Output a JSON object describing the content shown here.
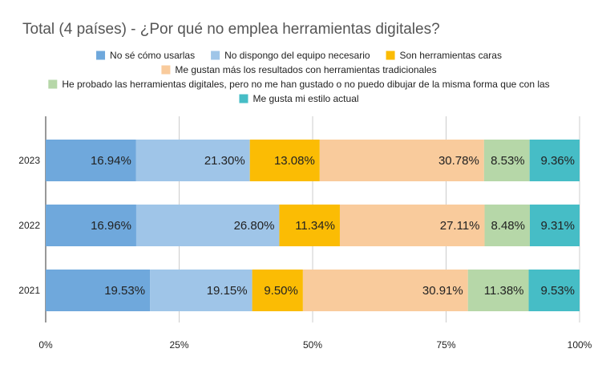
{
  "chart_data": {
    "type": "bar",
    "orientation": "horizontal",
    "stacked": "percent",
    "title": "Total (4 países) - ¿Por qué no emplea herramientas digitales?",
    "categories": [
      "2023",
      "2022",
      "2021"
    ],
    "series": [
      {
        "name": "No sé cómo usarlas",
        "color": "#6fa8dc",
        "values": [
          16.94,
          16.96,
          19.53
        ],
        "labels": [
          "16.94%",
          "16.96%",
          "19.53%"
        ]
      },
      {
        "name": "No dispongo del equipo necesario",
        "color": "#9fc5e8",
        "values": [
          21.3,
          26.8,
          19.15
        ],
        "labels": [
          "21.30%",
          "26.80%",
          "19.15%"
        ]
      },
      {
        "name": "Son herramientas caras",
        "color": "#fbbc04",
        "values": [
          13.08,
          11.34,
          9.5
        ],
        "labels": [
          "13.08%",
          "11.34%",
          "9.50%"
        ]
      },
      {
        "name": "Me gustan más los resultados con herramientas tradicionales",
        "color": "#f9cb9c",
        "values": [
          30.78,
          27.11,
          30.91
        ],
        "labels": [
          "30.78%",
          "27.11%",
          "30.91%"
        ]
      },
      {
        "name": "He probado las herramientas digitales, pero no me han gustado o no puedo dibujar de la misma forma que con las",
        "color": "#b6d7a8",
        "values": [
          8.53,
          8.48,
          11.38
        ],
        "labels": [
          "8.53%",
          "8.48%",
          "11.38%"
        ]
      },
      {
        "name": "Me gusta mi estilo actual",
        "color": "#46bdc6",
        "values": [
          9.36,
          9.31,
          9.53
        ],
        "labels": [
          "9.36%",
          "9.31%",
          "9.53%"
        ]
      }
    ],
    "x_ticks": [
      "0%",
      "25%",
      "50%",
      "75%",
      "100%"
    ],
    "xlim": [
      0,
      100
    ],
    "grid": "vertical",
    "legend": "top"
  }
}
